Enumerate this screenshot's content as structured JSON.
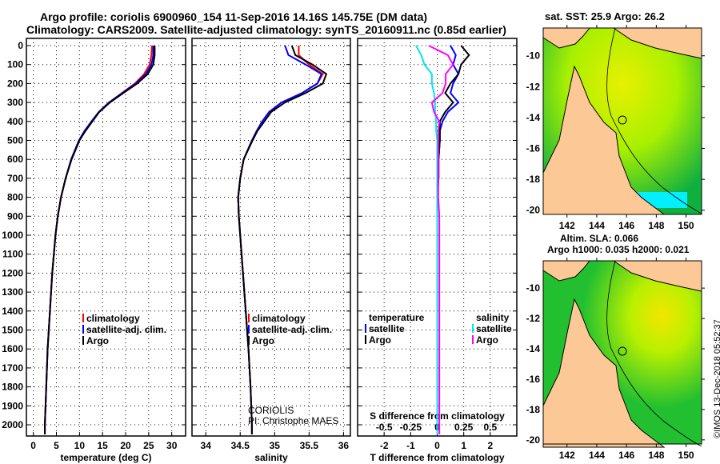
{
  "title_line1": "Argo profile: coriolis 6900960_154 11-Sep-2016 14.16S 145.75E (DM data)",
  "title_line2": "Climatology: CARS2009. Satellite-adjusted climatology: synTS_20160911.nc (0.85d earlier)",
  "credit_line1": "CORIOLIS",
  "credit_line2": "PI: Christophe MAES",
  "footer": "©IMOS 13-Dec-2018 05:52:37",
  "colors": {
    "climatology": "#ff0000",
    "satellite": "#0000ff",
    "argo": "#000000",
    "s_satellite": "#00e5ee",
    "s_argo": "#ff00ff"
  },
  "chart_data": [
    {
      "type": "line",
      "id": "temperature",
      "xlabel": "temperature (deg C)",
      "xlim": [
        -1.5,
        33
      ],
      "ylim": [
        0,
        2060
      ],
      "xticks": [
        "0",
        "5",
        "10",
        "15",
        "20",
        "25",
        "30"
      ],
      "xtick_values": [
        0,
        5,
        10,
        15,
        20,
        25,
        30
      ],
      "yticks": [
        "0",
        "100",
        "200",
        "300",
        "400",
        "500",
        "600",
        "700",
        "800",
        "900",
        "1000",
        "1100",
        "1200",
        "1300",
        "1400",
        "1500",
        "1600",
        "1700",
        "1800",
        "1900",
        "2000"
      ],
      "depth": [
        0,
        50,
        100,
        150,
        200,
        250,
        300,
        350,
        400,
        450,
        500,
        600,
        700,
        800,
        900,
        1000,
        1200,
        1400,
        1600,
        1800,
        2000,
        2050
      ],
      "legend": [
        "climatology",
        "satellite-adj. clim.",
        "Argo"
      ],
      "series": [
        {
          "name": "climatology",
          "color": "#ff0000",
          "values": [
            25.7,
            25.6,
            25.2,
            24.0,
            22.0,
            19.2,
            16.4,
            14.2,
            12.6,
            11.1,
            9.9,
            8.2,
            7.0,
            6.0,
            5.3,
            4.8,
            4.1,
            3.6,
            3.1,
            2.8,
            2.5,
            2.5
          ]
        },
        {
          "name": "satellite-adj. clim.",
          "color": "#0000ff",
          "values": [
            26.0,
            26.0,
            25.6,
            24.4,
            22.2,
            19.3,
            16.4,
            14.2,
            12.6,
            11.1,
            9.9,
            8.2,
            7.0,
            6.0,
            5.3,
            4.8,
            4.1,
            3.6,
            3.1,
            2.8,
            2.5,
            2.5
          ]
        },
        {
          "name": "Argo",
          "color": "#000000",
          "values": [
            26.3,
            26.3,
            26.0,
            24.8,
            22.5,
            19.5,
            16.6,
            14.3,
            12.8,
            11.3,
            10.0,
            8.3,
            7.0,
            6.0,
            5.3,
            4.8,
            4.1,
            3.6,
            3.1,
            2.8,
            2.5,
            2.5
          ]
        }
      ]
    },
    {
      "type": "line",
      "id": "salinity",
      "xlabel": "salinity",
      "xlim": [
        33.8,
        36.1
      ],
      "ylim": [
        0,
        2060
      ],
      "xticks": [
        "34",
        "34.5",
        "35",
        "35.5",
        "36"
      ],
      "xtick_values": [
        34,
        34.5,
        35,
        35.5,
        36
      ],
      "depth": [
        0,
        50,
        100,
        150,
        200,
        250,
        300,
        350,
        400,
        450,
        500,
        600,
        700,
        800,
        900,
        1000,
        1200,
        1400,
        1600,
        1800,
        2000,
        2050
      ],
      "legend": [
        "climatology",
        "satellite-adj. clim.",
        "Argo"
      ],
      "series": [
        {
          "name": "climatology",
          "color": "#ff0000",
          "values": [
            35.35,
            35.35,
            35.5,
            35.7,
            35.62,
            35.4,
            35.1,
            34.92,
            34.82,
            34.74,
            34.67,
            34.55,
            34.5,
            34.47,
            34.48,
            34.5,
            34.54,
            34.58,
            34.62,
            34.65,
            34.67,
            34.67
          ]
        },
        {
          "name": "satellite-adj. clim.",
          "color": "#0000ff",
          "values": [
            35.15,
            35.2,
            35.45,
            35.68,
            35.62,
            35.4,
            35.1,
            34.92,
            34.82,
            34.74,
            34.67,
            34.55,
            34.5,
            34.47,
            34.48,
            34.5,
            34.54,
            34.58,
            34.62,
            34.65,
            34.67,
            34.67
          ]
        },
        {
          "name": "Argo",
          "color": "#000000",
          "values": [
            35.25,
            35.3,
            35.55,
            35.75,
            35.7,
            35.45,
            35.15,
            34.95,
            34.85,
            34.75,
            34.68,
            34.55,
            34.5,
            34.47,
            34.48,
            34.5,
            34.54,
            34.58,
            34.62,
            34.65,
            34.67,
            34.67
          ]
        }
      ]
    },
    {
      "type": "line",
      "id": "difference",
      "xlabel": "T difference from climatology",
      "xlabel2": "S difference from climatology",
      "xlim": [
        -3,
        3
      ],
      "ylim": [
        0,
        2060
      ],
      "xticks": [
        "-2",
        "-1",
        "0",
        "1",
        "2"
      ],
      "xtick_values": [
        -2,
        -1,
        0,
        1,
        2
      ],
      "xticks2": [
        "-0.5",
        "-0.25",
        "0",
        "0.25",
        "0.5"
      ],
      "xtick2_values": [
        -0.5,
        -0.25,
        0,
        0.25,
        0.5
      ],
      "depth": [
        0,
        50,
        100,
        150,
        200,
        250,
        300,
        350,
        400,
        450,
        500,
        600,
        700,
        800,
        900,
        1000,
        1200,
        1400,
        1600,
        1800,
        2000,
        2050
      ],
      "legend_temperature": [
        "temperature",
        "satellite",
        "Argo"
      ],
      "legend_salinity": [
        "salinity",
        "satellite",
        "Argo"
      ],
      "series": [
        {
          "name": "T satellite",
          "color": "#0000ff",
          "scale": 1,
          "values": [
            0.5,
            0.7,
            0.6,
            0.8,
            0.6,
            0.5,
            0.8,
            0.4,
            0.2,
            0.1,
            0.1,
            0.05,
            0.05,
            0,
            0,
            0,
            0,
            0,
            0,
            0,
            0,
            0
          ]
        },
        {
          "name": "T Argo",
          "color": "#000000",
          "scale": 1,
          "values": [
            0.9,
            1.2,
            0.9,
            0.8,
            0.5,
            0.3,
            0.6,
            0.3,
            0.1,
            0.1,
            0.1,
            0.05,
            0.05,
            0,
            0,
            0,
            0,
            0,
            0,
            0,
            0,
            0
          ]
        },
        {
          "name": "S satellite",
          "color": "#00e5ee",
          "scale": 4,
          "values": [
            -0.2,
            -0.15,
            -0.12,
            -0.05,
            -0.05,
            -0.03,
            -0.02,
            -0.02,
            -0.01,
            -0.01,
            0,
            0,
            0,
            0,
            0,
            0,
            0,
            0,
            0,
            0,
            0,
            0
          ]
        },
        {
          "name": "S Argo",
          "color": "#ff00ff",
          "scale": 4,
          "values": [
            -0.08,
            0.1,
            0.15,
            0.08,
            0.08,
            0.05,
            -0.05,
            -0.03,
            0.02,
            0.01,
            0.01,
            0.01,
            0.01,
            0.01,
            0.02,
            0.02,
            0.02,
            0.02,
            0.02,
            0.02,
            0.02,
            0.02
          ]
        }
      ]
    }
  ],
  "maps": [
    {
      "title": "sat. SST: 25.9 Argo: 26.2",
      "lat_ticks": [
        "-10",
        "-12",
        "-14",
        "-16",
        "-18",
        "-20"
      ],
      "lon_ticks": [
        "142",
        "144",
        "146",
        "148",
        "150"
      ]
    },
    {
      "title1": "Altim. SLA: 0.066",
      "title2": "Argo h1000: 0.035 h2000: 0.021",
      "lat_ticks": [
        "-10",
        "-12",
        "-14",
        "-16",
        "-18",
        "-20"
      ],
      "lon_ticks": [
        "142",
        "144",
        "146",
        "148",
        "150"
      ]
    }
  ]
}
